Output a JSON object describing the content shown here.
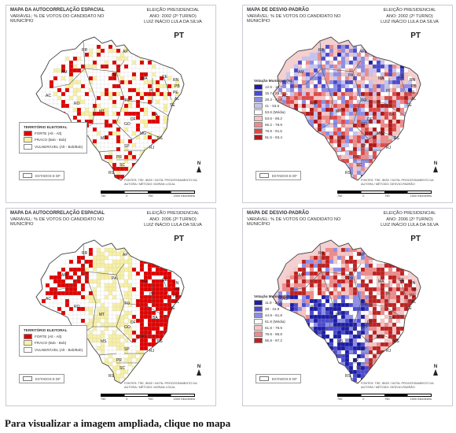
{
  "panels": [
    {
      "id": "p1",
      "type": "autocorrelation",
      "title": "MAPA DA AUTOCORRELAÇÃO ESPACIAL",
      "variable": "VARIÁVEL: % DE VOTOS DO CANDIDATO NO MUNICÍPIO",
      "election": "ELEIÇÃO PRESIDENCIAL",
      "year_turn": "ANO: 2002    (2º TURNO)",
      "candidate": "LUIZ INÁCIO LULA DA SILVA",
      "party": "PT",
      "legend_title": "TERRITÓRIO ELEITORAL",
      "legend": [
        {
          "label": "FORTE (Alt - Alt)",
          "color": "#e00000"
        },
        {
          "label": "FRACO (Bxb - Bxb)",
          "color": "#f7f0a6"
        },
        {
          "label": "VULNERÁVEL (Alt - Bxb/Bxb)",
          "color": "#ffffff"
        }
      ],
      "states_label": "ESTADOS E DF",
      "sources": "FONTES: TSE, IBGE / NOTA: PROCESSAMENTO DA AUTORA / MÉTODO: MORAN LOCAL",
      "scale": [
        "750",
        "0",
        "750",
        "1500 Kilometers"
      ]
    },
    {
      "id": "p2",
      "type": "deviation",
      "title": "MAPA DE DESVIO-PADRÃO",
      "variable": "VARIÁVEL: % DE VOTOS DO CANDIDATO NO MUNICÍPIO",
      "election": "ELEIÇÃO PRESIDENCIAL",
      "year_turn": "ANO: 2002    (2º TURNO)",
      "candidate": "LUIZ INÁCIO LULA DA SILVA",
      "party": "PT",
      "legend_title": "Votação Municipal  (%)",
      "legend": [
        {
          "label": "12.5 - 15.7",
          "color": "#1c1ca8"
        },
        {
          "label": "15.7 - 28.3",
          "color": "#4a4ad0"
        },
        {
          "label": "28.3 - 41.0",
          "color": "#8c8ce8"
        },
        {
          "label": "41 - 53.6",
          "color": "#c4c4f2"
        },
        {
          "label": "53.6 (Média)",
          "color": "#ffffff"
        },
        {
          "label": "53.6 - 66.2",
          "color": "#f7c4c4"
        },
        {
          "label": "66.2 - 78.9",
          "color": "#ee8a8a"
        },
        {
          "label": "78.9 - 91.5",
          "color": "#e04848"
        },
        {
          "label": "91.5 - 93.4",
          "color": "#b01818"
        }
      ],
      "states_label": "ESTADOS E DF",
      "sources": "FONTES: TSE, IBGE / NOTA: PROCESSAMENTO DA AUTORA / MÉTODO: DESVIO-PADRÃO",
      "scale": [
        "750",
        "0",
        "750",
        "1500 Kilometers"
      ]
    },
    {
      "id": "p3",
      "type": "autocorrelation",
      "title": "MAPA DA AUTOCORRELAÇÃO ESPACIAL",
      "variable": "VARIÁVEL: % DE VOTOS DO CANDIDATO NO MUNICÍPIO",
      "election": "ELEIÇÃO PRESIDENCIAL",
      "year_turn": "ANO: 2006    (2º TURNO)",
      "candidate": "LUIZ INÁCIO LULA DA SILVA",
      "party": "PT",
      "legend_title": "TERRITÓRIO ELEITORAL",
      "legend": [
        {
          "label": "FORTE (Alt - Alt)",
          "color": "#e00000"
        },
        {
          "label": "FRACO (Bxb - Bxb)",
          "color": "#f7f0a6"
        },
        {
          "label": "VULNERÁVEL (Alt - Bxb/Bxb)",
          "color": "#ffffff"
        }
      ],
      "states_label": "ESTADOS E DF",
      "sources": "FONTES: TSE, IBGE / NOTA: PROCESSAMENTO DA AUTORA / MÉTODO: MORAN LOCAL",
      "scale": [
        "750",
        "0",
        "750",
        "1500 Kilometers"
      ]
    },
    {
      "id": "p4",
      "type": "deviation",
      "title": "MAPA DE DESVIO-PADRÃO",
      "variable": "VARIÁVEL: % DE VOTOS DO CANDIDATO NO MUNICÍPIO",
      "election": "ELEIÇÃO PRESIDENCIAL",
      "year_turn": "ANO: 2006    (2º TURNO)",
      "candidate": "LUIZ INÁCIO LULA DA SILVA",
      "party": "PT",
      "legend_title": "Votação Municipal  (%)",
      "legend": [
        {
          "label": "11.9 - 28.0",
          "color": "#1c1ca8"
        },
        {
          "label": "28 - 44.9",
          "color": "#4a4ad0"
        },
        {
          "label": "44.9 - 61.8",
          "color": "#8c8ce8"
        },
        {
          "label": "61.8 (Média)",
          "color": "#ffffff"
        },
        {
          "label": "61.8 - 78.9",
          "color": "#f7c4c4"
        },
        {
          "label": "78.9 - 95.8",
          "color": "#ee8a8a"
        },
        {
          "label": "95.8 - 97.2",
          "color": "#c02020"
        }
      ],
      "states_label": "ESTADOS E DF",
      "sources": "FONTES: TSE, IBGE / NOTA: PROCESSAMENTO DA AUTORA / MÉTODO: DESVIO-PADRÃO",
      "scale": [
        "750",
        "0",
        "750",
        "1500 Kilometers"
      ]
    }
  ],
  "north_label": "N",
  "state_labels": [
    "RR",
    "AP",
    "AM",
    "PA",
    "MA",
    "CE",
    "RN",
    "PB",
    "PE",
    "AL",
    "SE",
    "BA",
    "PI",
    "TO",
    "AC",
    "RO",
    "MT",
    "GO",
    "DF",
    "MG",
    "ES",
    "RJ",
    "SP",
    "MS",
    "PR",
    "SC",
    "RS"
  ],
  "caption": "Para visualizar a imagem ampliada, clique no mapa"
}
